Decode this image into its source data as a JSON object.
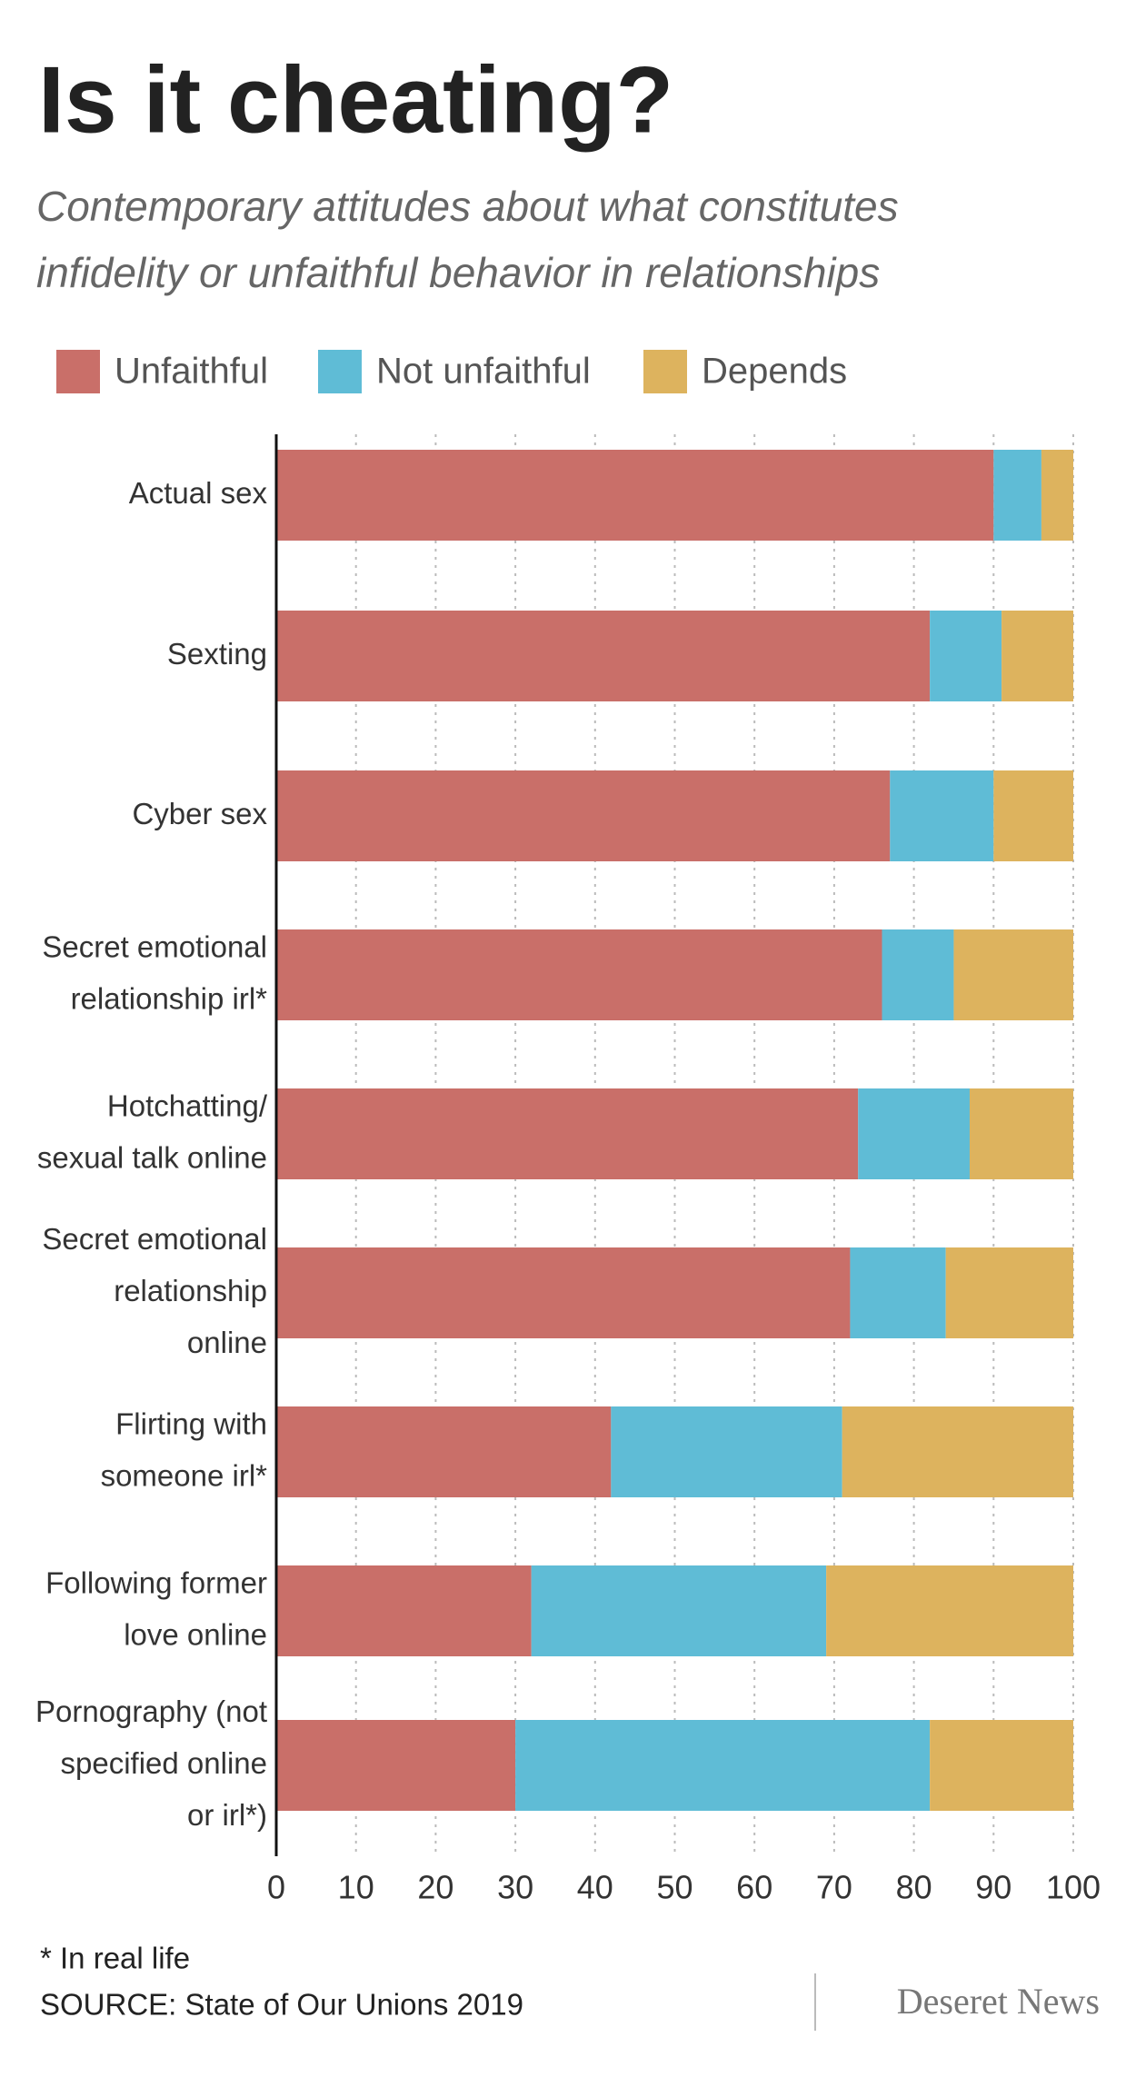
{
  "chart_data": {
    "type": "stacked-bar-horizontal",
    "title": "Is it cheating?",
    "subtitle": [
      "Contemporary attitudes about what constitutes",
      "infidelity or unfaithful behavior in relationships"
    ],
    "categories": [
      "Actual sex",
      "Sexting",
      "Cyber sex",
      "Secret emotional\nrelationship irl*",
      "Hotchatting/\nsexual talk online",
      "Secret emotional\nrelationship\nonline",
      "Flirting with\nsomeone irl*",
      "Following former\nlove online",
      "Pornography (not\nspecified online\nor irl*)"
    ],
    "series": [
      {
        "name": "Unfaithful",
        "color": "#c96f69",
        "values": [
          90,
          82,
          77,
          76,
          73,
          72,
          42,
          32,
          30
        ]
      },
      {
        "name": "Not unfaithful",
        "color": "#5fbcd6",
        "values": [
          6,
          9,
          13,
          9,
          14,
          12,
          29,
          37,
          52
        ]
      },
      {
        "name": "Depends",
        "color": "#ddb35e",
        "values": [
          4,
          9,
          10,
          15,
          13,
          16,
          29,
          31,
          18
        ]
      }
    ],
    "xlim": [
      0,
      100
    ],
    "xticks": [
      0,
      10,
      20,
      30,
      40,
      50,
      60,
      70,
      80,
      90,
      100
    ],
    "grid": true,
    "footnote": "* In real life",
    "source": "SOURCE: State of Our Unions 2019",
    "brand": "Deseret News"
  }
}
